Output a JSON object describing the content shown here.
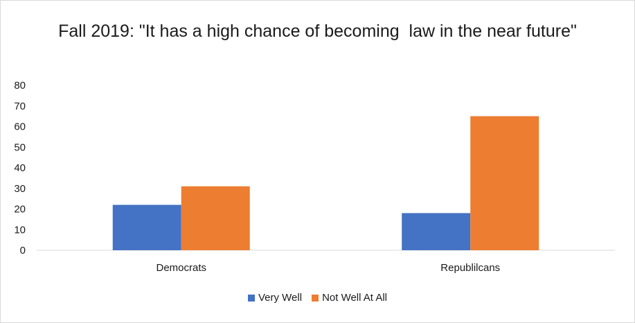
{
  "chart_data": {
    "type": "bar",
    "title": "Fall 2019: \"It has a high chance of becoming  law in the near future\"",
    "categories": [
      "Democrats",
      "Republilcans"
    ],
    "series": [
      {
        "name": "Very Well",
        "values": [
          22,
          18
        ],
        "color": "#4472c4"
      },
      {
        "name": "Not Well At All",
        "values": [
          31,
          65
        ],
        "color": "#ed7d31"
      }
    ],
    "ylim": [
      0,
      80
    ],
    "yticks": [
      0,
      10,
      20,
      30,
      40,
      50,
      60,
      70,
      80
    ],
    "grid": false,
    "legend_position": "bottom"
  }
}
